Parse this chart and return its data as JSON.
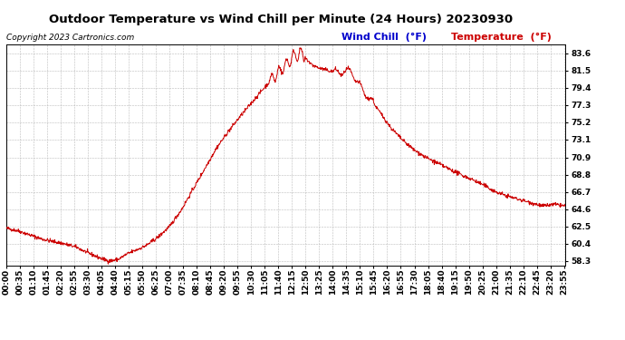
{
  "title": "Outdoor Temperature vs Wind Chill per Minute (24 Hours) 20230930",
  "copyright": "Copyright 2023 Cartronics.com",
  "legend_wind_chill": "Wind Chill  (°F)",
  "legend_temperature": "Temperature  (°F)",
  "line_color": "#cc0000",
  "wind_chill_color": "#0000cc",
  "temperature_color": "#cc0000",
  "background_color": "#ffffff",
  "grid_color": "#bbbbbb",
  "ylim": [
    57.8,
    84.7
  ],
  "yticks": [
    58.3,
    60.4,
    62.5,
    64.6,
    66.7,
    68.8,
    70.9,
    73.1,
    75.2,
    77.3,
    79.4,
    81.5,
    83.6
  ],
  "title_fontsize": 9.5,
  "copyright_fontsize": 6.5,
  "legend_fontsize": 8,
  "tick_fontsize": 6.5,
  "tick_step": 35,
  "total_minutes": 1440
}
